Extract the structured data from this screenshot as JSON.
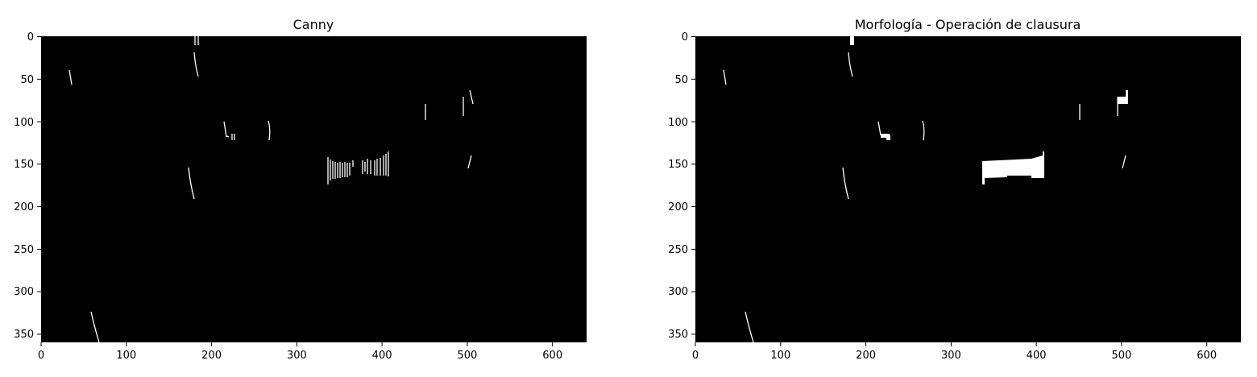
{
  "panels": [
    {
      "title": "Canny",
      "xticks": [
        "0",
        "100",
        "200",
        "300",
        "400",
        "500",
        "600"
      ],
      "yticks": [
        "0",
        "50",
        "100",
        "150",
        "200",
        "250",
        "300",
        "350"
      ]
    },
    {
      "title": "Morfología - Operación de clausura",
      "xticks": [
        "0",
        "100",
        "200",
        "300",
        "400",
        "500",
        "600"
      ],
      "yticks": [
        "0",
        "50",
        "100",
        "150",
        "200",
        "250",
        "300",
        "350"
      ]
    }
  ],
  "colors": {
    "background": "#ffffff",
    "image_background": "#000000",
    "edges": "#ffffff"
  }
}
